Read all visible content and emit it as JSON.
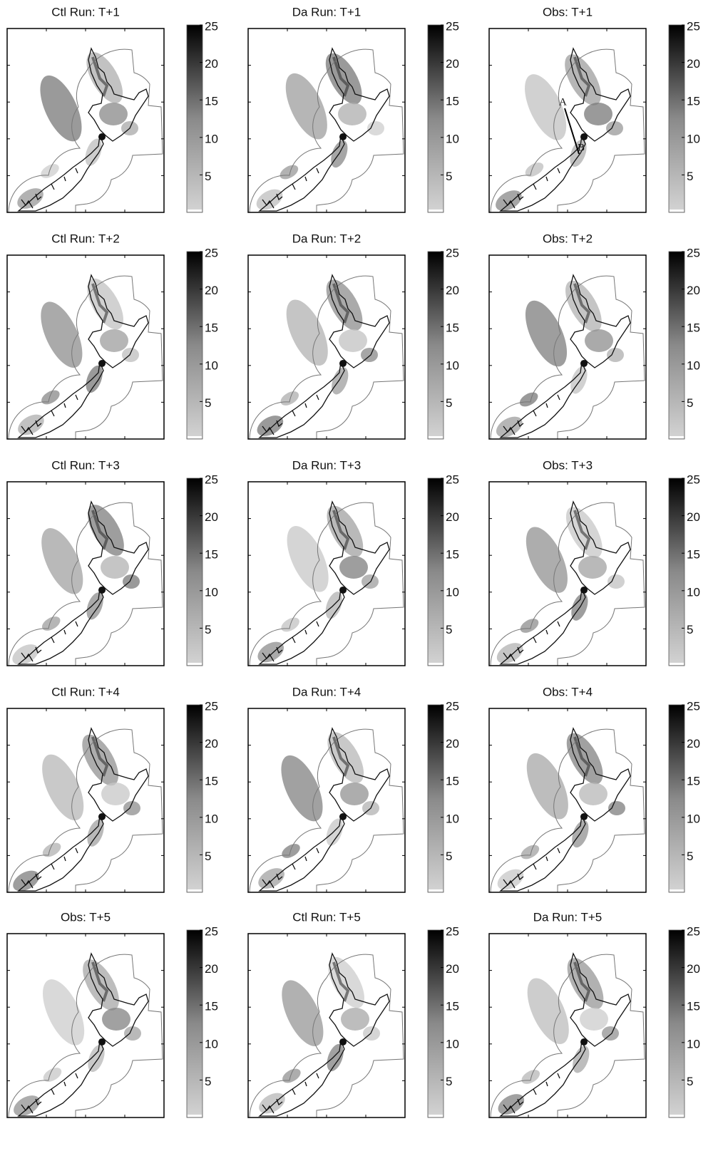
{
  "panels": [
    {
      "title": "Ctl Run: T+1"
    },
    {
      "title": "Da Run: T+1"
    },
    {
      "title": "Obs: T+1"
    },
    {
      "title": "Ctl Run: T+2"
    },
    {
      "title": "Da Run: T+2"
    },
    {
      "title": "Obs: T+2"
    },
    {
      "title": "Ctl Run: T+3"
    },
    {
      "title": "Da Run: T+3"
    },
    {
      "title": "Obs: T+3"
    },
    {
      "title": "Ctl Run: T+4"
    },
    {
      "title": "Da Run: T+4"
    },
    {
      "title": "Obs: T+4"
    },
    {
      "title": "Obs: T+5"
    },
    {
      "title": "Ctl Run: T+5"
    },
    {
      "title": "Da Run: T+5"
    }
  ],
  "annotations": [
    "A",
    "B"
  ],
  "colorbar": {
    "range": [
      0,
      25
    ],
    "ticks": [
      5,
      10,
      15,
      20,
      25
    ]
  }
}
